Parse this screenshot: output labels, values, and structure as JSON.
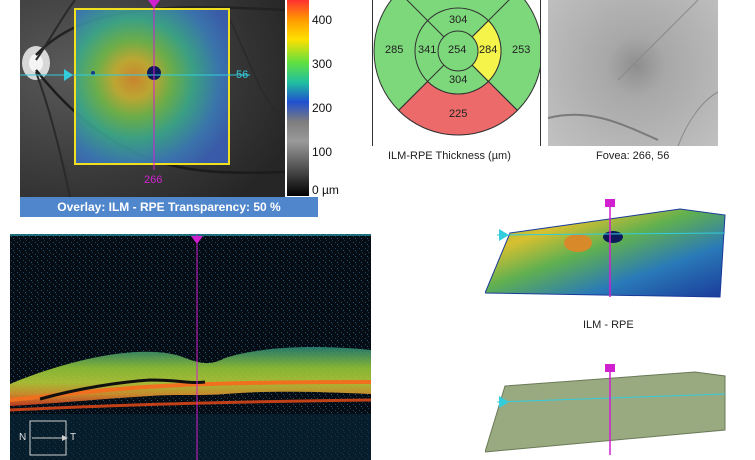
{
  "colorbar": {
    "ticks": [
      "400",
      "300",
      "200",
      "100",
      "0 µm"
    ]
  },
  "fundus_overlay": {
    "y_marker": "56",
    "x_marker": "266",
    "banner": "Overlay: ILM - RPE  Transparency: 50 %"
  },
  "etdrs": {
    "caption": "ILM-RPE Thickness (µm)",
    "center": "254",
    "inner_superior": "304",
    "inner_nasal": "341",
    "inner_temporal": "284",
    "inner_inferior": "304",
    "outer_superior": "",
    "outer_nasal": "285",
    "outer_temporal": "253",
    "outer_inferior": "225",
    "colors": {
      "green": "#7cd87a",
      "yellow": "#f4f44a",
      "red": "#ec6a6a"
    }
  },
  "fovea": {
    "caption": "Fovea: 266, 56"
  },
  "bscan": {
    "nasal": "N",
    "temporal": "T"
  },
  "surface_3d": {
    "caption": "ILM - RPE"
  },
  "accents": {
    "magenta": "#d020d0",
    "cyan": "#33ccdd",
    "banner_blue": "#4f86cc"
  }
}
